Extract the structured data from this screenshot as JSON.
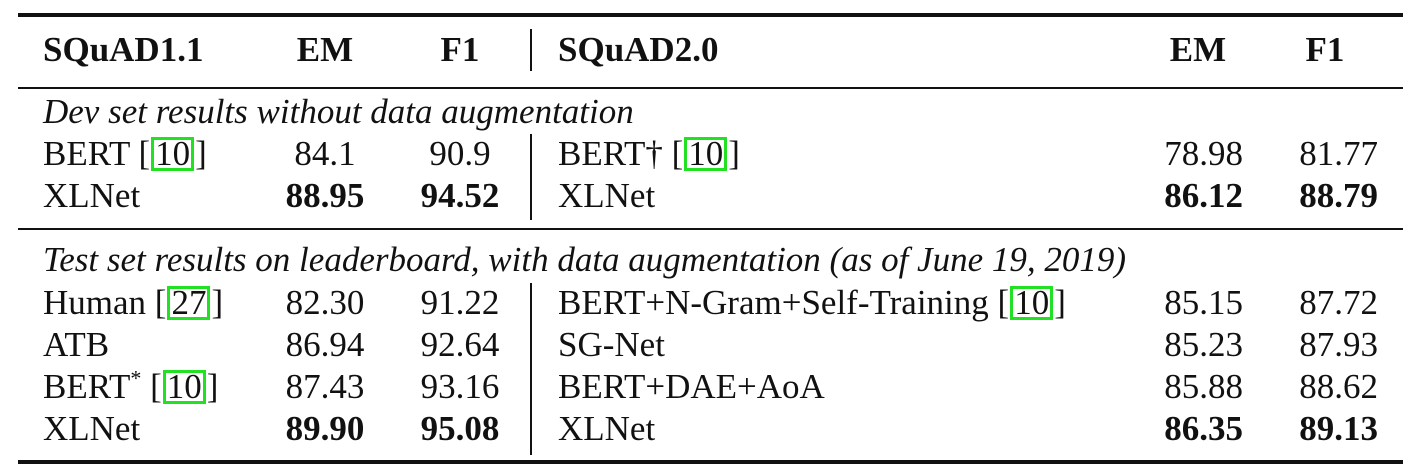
{
  "headers": {
    "left_dataset": "SQuAD1.1",
    "left_em": "EM",
    "left_f1": "F1",
    "right_dataset": "SQuAD2.0",
    "right_em": "EM",
    "right_f1": "F1"
  },
  "section1": {
    "caption": "Dev set results without data augmentation",
    "rows": [
      {
        "left_model": "BERT",
        "left_ref": "10",
        "left_em": "84.1",
        "left_f1": "90.9",
        "right_model": "BERT†",
        "right_ref": "10",
        "right_em": "78.98",
        "right_f1": "81.77"
      },
      {
        "left_model": "XLNet",
        "left_em": "88.95",
        "left_f1": "94.52",
        "right_model": "XLNet",
        "right_em": "86.12",
        "right_f1": "88.79"
      }
    ]
  },
  "section2": {
    "caption": "Test set results on leaderboard, with data augmentation (as of June 19, 2019)",
    "rows": [
      {
        "left_model": "Human",
        "left_ref": "27",
        "left_em": "82.30",
        "left_f1": "91.22",
        "right_model": "BERT+N-Gram+Self-Training",
        "right_ref": "10",
        "right_em": "85.15",
        "right_f1": "87.72"
      },
      {
        "left_model": "ATB",
        "left_em": "86.94",
        "left_f1": "92.64",
        "right_model": "SG-Net",
        "right_em": "85.23",
        "right_f1": "87.93"
      },
      {
        "left_model": "BERT",
        "left_sup": "*",
        "left_ref": "10",
        "left_em": "87.43",
        "left_f1": "93.16",
        "right_model": "BERT+DAE+AoA",
        "right_em": "85.88",
        "right_f1": "88.62"
      },
      {
        "left_model": "XLNet",
        "left_em": "89.90",
        "left_f1": "95.08",
        "right_model": "XLNet",
        "right_em": "86.35",
        "right_f1": "89.13"
      }
    ]
  }
}
